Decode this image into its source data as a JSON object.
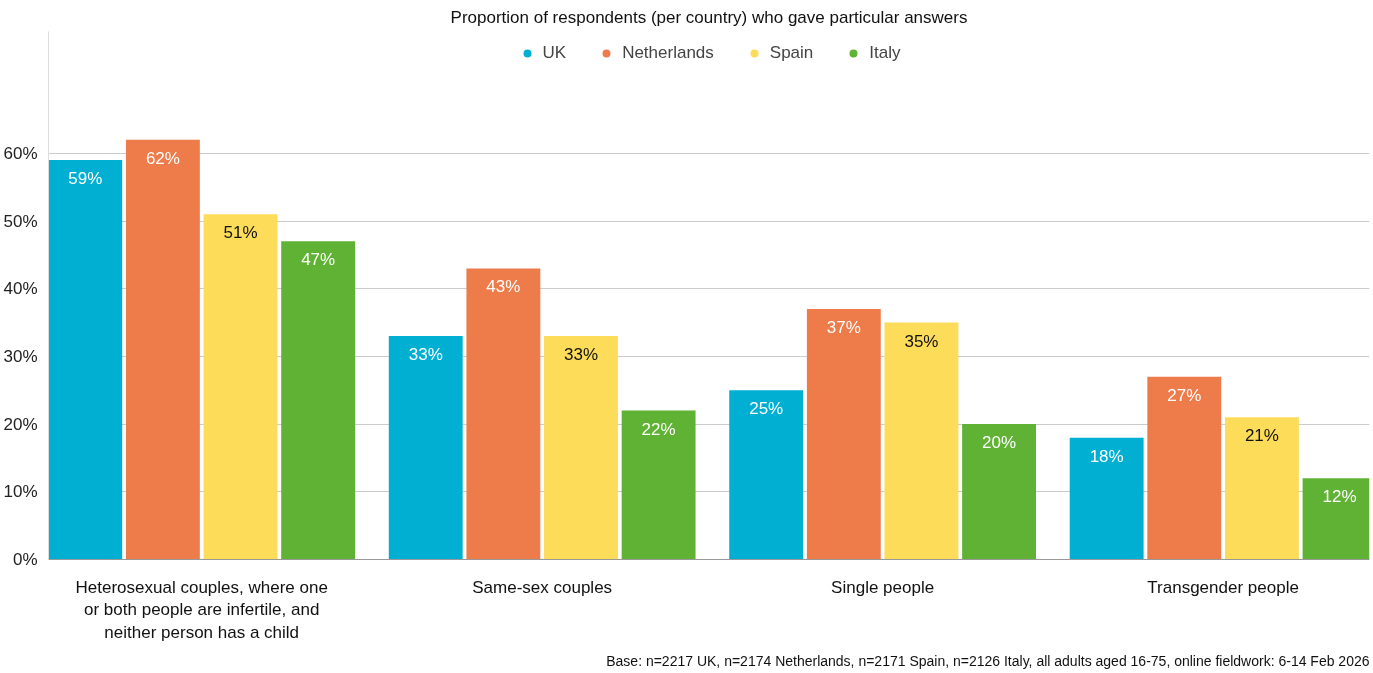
{
  "chart_data": {
    "type": "bar",
    "title": "Proportion of respondents (per country) who gave particular answers",
    "categories": [
      "Heterosexual couples, where one or both people are infertile, and neither person has a child",
      "Same-sex couples",
      "Single people",
      "Transgender people"
    ],
    "series": [
      {
        "name": "UK",
        "color": "#00afd2",
        "values": [
          59,
          33,
          25,
          18
        ],
        "value_labels": [
          "59%",
          "33%",
          "25%",
          "18%"
        ]
      },
      {
        "name": "Netherlands",
        "color": "#ee7b4a",
        "values": [
          62,
          43,
          37,
          27
        ],
        "value_labels": [
          "62%",
          "43%",
          "37%",
          "27%"
        ]
      },
      {
        "name": "Spain",
        "color": "#fddc5a",
        "values": [
          51,
          33,
          35,
          21
        ],
        "value_labels": [
          "51%",
          "33%",
          "35%",
          "21%"
        ]
      },
      {
        "name": "Italy",
        "color": "#5fb233",
        "values": [
          47,
          22,
          20,
          12
        ],
        "value_labels": [
          "47%",
          "22%",
          "20%",
          "12%"
        ]
      }
    ],
    "ylim": [
      0,
      78
    ],
    "yticks": [
      {
        "value": 0,
        "label": "0%"
      },
      {
        "value": 10,
        "label": "10%"
      },
      {
        "value": 20,
        "label": "20%"
      },
      {
        "value": 30,
        "label": "30%"
      },
      {
        "value": 40,
        "label": "40%"
      },
      {
        "value": 50,
        "label": "50%"
      },
      {
        "value": 60,
        "label": "60%"
      }
    ],
    "grid": "y",
    "legend": "top",
    "annotations": [
      "Base: n=2217 UK, n=2174 Netherlands, n=2171 Spain, n=2126 Italy, all adults aged 16-75, online fieldwork: 6-14 Feb 2026"
    ]
  }
}
